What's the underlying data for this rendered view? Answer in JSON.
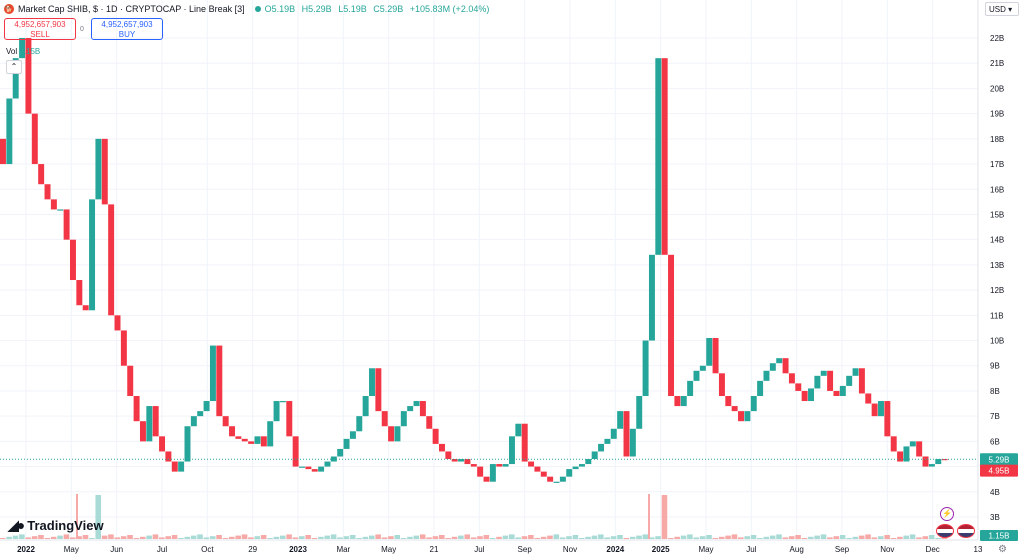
{
  "header": {
    "title": "Market Cap SHIB, $ · 1D · CRYPTOCAP · Line Break [3]",
    "ohlc": {
      "o": "O5.19B",
      "h": "H5.29B",
      "l": "L5.19B",
      "c": "C5.29B",
      "change": "+105.83M (+2.04%)"
    }
  },
  "trade": {
    "sell_value": "4,952,657,903",
    "sell_label": "SELL",
    "buy_value": "4,952,657,903",
    "buy_label": "BUY",
    "spread": "0"
  },
  "volume": {
    "label": "Vol",
    "value": "1.15B"
  },
  "currency": "USD",
  "brand": "TradingView",
  "colors": {
    "up": "#26a69a",
    "down": "#f23645",
    "vol_up": "#a8dbd5",
    "vol_down": "#f7a9a7",
    "current_price": "#26a69a",
    "previous_price": "#f23645",
    "grid": "#f0f3fa"
  },
  "chart_data": {
    "type": "line_break",
    "y_axis": {
      "unit": "B",
      "min": 3,
      "max": 22,
      "ticks": [
        "22B",
        "21B",
        "20B",
        "19B",
        "18B",
        "17B",
        "16B",
        "15B",
        "14B",
        "13B",
        "12B",
        "11B",
        "10B",
        "9B",
        "8B",
        "7B",
        "6B",
        "5B",
        "4B",
        "3B"
      ]
    },
    "x_axis": {
      "ticks": [
        "2022",
        "May",
        "Jun",
        "Jul",
        "Oct",
        "29",
        "2023",
        "Mar",
        "May",
        "21",
        "Jul",
        "Sep",
        "Nov",
        "2024",
        "2025",
        "May",
        "Jul",
        "Aug",
        "Sep",
        "Nov",
        "Dec",
        "13"
      ]
    },
    "price_labels": {
      "current": "5.29B",
      "previous": "4.95B",
      "volume": "1.15B"
    },
    "close_path": [
      18.0,
      17.0,
      19.6,
      21.2,
      22.0,
      19.0,
      17.0,
      16.2,
      15.6,
      15.2,
      15.2,
      14.0,
      12.4,
      11.4,
      11.2,
      15.6,
      18.0,
      15.4,
      11.0,
      10.4,
      9.0,
      7.8,
      6.8,
      6.0,
      7.4,
      6.2,
      5.6,
      5.2,
      4.8,
      5.2,
      6.6,
      7.0,
      7.2,
      7.6,
      9.8,
      7.0,
      6.6,
      6.2,
      6.1,
      6.0,
      5.9,
      6.2,
      5.8,
      6.8,
      7.6,
      7.6,
      6.2,
      5.0,
      5.0,
      4.9,
      4.8,
      5.0,
      5.2,
      5.4,
      5.7,
      6.1,
      6.4,
      7.0,
      7.8,
      8.9,
      7.2,
      6.6,
      6.0,
      6.6,
      7.2,
      7.4,
      7.6,
      7.0,
      6.5,
      5.9,
      5.6,
      5.3,
      5.2,
      5.3,
      5.1,
      5.0,
      4.6,
      4.4,
      5.1,
      5.0,
      5.1,
      6.2,
      6.7,
      5.2,
      5.0,
      4.8,
      4.6,
      4.4,
      4.4,
      4.6,
      4.9,
      5.0,
      5.1,
      5.3,
      5.6,
      5.9,
      6.1,
      6.5,
      7.2,
      5.4,
      6.5,
      7.8,
      10.0,
      13.4,
      21.2,
      13.4,
      7.8,
      7.4,
      7.8,
      8.4,
      8.8,
      9.0,
      10.1,
      8.7,
      7.8,
      7.4,
      7.2,
      6.8,
      7.2,
      7.8,
      8.4,
      8.8,
      9.1,
      9.3,
      8.7,
      8.3,
      8.0,
      7.6,
      8.1,
      8.6,
      8.8,
      8.0,
      7.8,
      8.2,
      8.6,
      8.9,
      7.9,
      7.5,
      7.0,
      7.6,
      6.2,
      5.6,
      5.2,
      5.8,
      6.0,
      5.4,
      5.0,
      5.1,
      5.3,
      5.29
    ],
    "volume_spikes": [
      {
        "x_index": 15,
        "value_b": 1.15
      },
      {
        "x_index": 104,
        "value_b": 1.15
      }
    ]
  }
}
